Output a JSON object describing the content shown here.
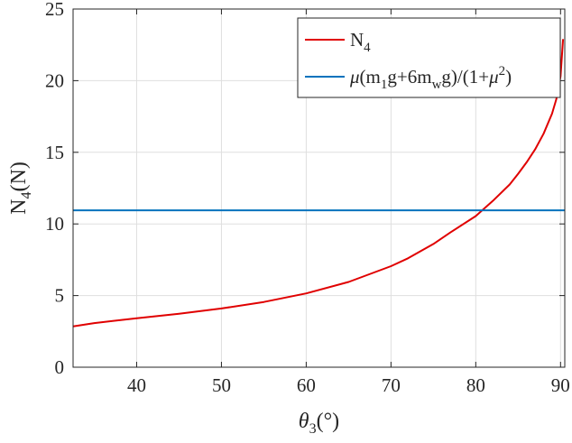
{
  "chart_data": {
    "type": "line",
    "title": "",
    "xlabel": {
      "main": "θ",
      "sub": "3",
      "rest": "(°)"
    },
    "ylabel": {
      "main": "N",
      "sub": "4",
      "rest": "(N)"
    },
    "xlim": [
      32.5,
      90.5
    ],
    "ylim": [
      0,
      25
    ],
    "xticks": [
      40,
      50,
      60,
      70,
      80,
      90
    ],
    "yticks": [
      0,
      5,
      10,
      15,
      20,
      25
    ],
    "grid": true,
    "legend_position": "top-right",
    "series": [
      {
        "name": "N4",
        "legend": {
          "parts": [
            [
              "N",
              "n"
            ],
            [
              "4",
              "sub"
            ]
          ]
        },
        "color": "#e00000",
        "x": [
          32.5,
          35,
          40,
          45,
          50,
          55,
          60,
          65,
          70,
          72,
          75,
          77,
          80,
          82,
          84,
          85,
          86,
          87,
          88,
          89,
          89.5,
          90,
          90.3
        ],
        "y": [
          2.85,
          3.08,
          3.42,
          3.73,
          4.1,
          4.55,
          5.15,
          5.95,
          7.05,
          7.6,
          8.6,
          9.4,
          10.55,
          11.6,
          12.75,
          13.5,
          14.3,
          15.2,
          16.3,
          17.7,
          18.7,
          20.3,
          22.9
        ]
      },
      {
        "name": "μ(m1g+6mwg)/(1+μ2)",
        "legend": {
          "parts": [
            [
              "μ",
              "n"
            ],
            [
              "(m",
              "n"
            ],
            [
              "1",
              "sub"
            ],
            [
              "g+6m",
              "n"
            ],
            [
              "w",
              "sub"
            ],
            [
              "g)/(1+",
              "n"
            ],
            [
              "μ",
              "n"
            ],
            [
              "2",
              "sup"
            ],
            [
              ")",
              "n"
            ]
          ]
        },
        "color": "#0072bd",
        "x": [
          32.5,
          90.5
        ],
        "y": [
          10.95,
          10.95
        ]
      }
    ]
  }
}
